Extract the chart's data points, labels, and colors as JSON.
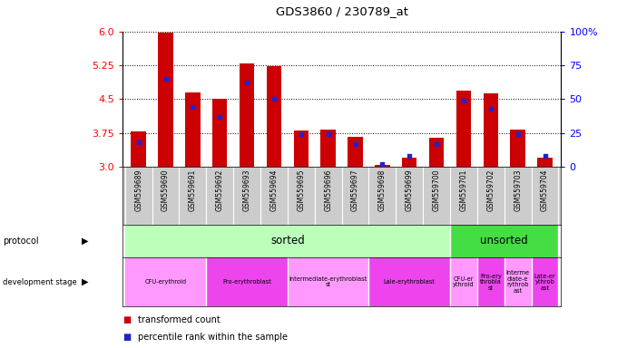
{
  "title": "GDS3860 / 230789_at",
  "samples": [
    "GSM559689",
    "GSM559690",
    "GSM559691",
    "GSM559692",
    "GSM559693",
    "GSM559694",
    "GSM559695",
    "GSM559696",
    "GSM559697",
    "GSM559698",
    "GSM559699",
    "GSM559700",
    "GSM559701",
    "GSM559702",
    "GSM559703",
    "GSM559704"
  ],
  "transformed_count": [
    3.79,
    5.98,
    4.65,
    4.5,
    5.3,
    5.22,
    3.8,
    3.82,
    3.66,
    3.05,
    3.2,
    3.64,
    4.68,
    4.62,
    3.82,
    3.2
  ],
  "percentile_rank": [
    18,
    65,
    44,
    37,
    62,
    50,
    24,
    24,
    17,
    2,
    8,
    17,
    49,
    43,
    24,
    8
  ],
  "y_min": 3.0,
  "y_max": 6.0,
  "yticks_left": [
    3.0,
    3.75,
    4.5,
    5.25,
    6.0
  ],
  "yticks_right": [
    0,
    25,
    50,
    75,
    100
  ],
  "bar_color": "#CC0000",
  "dot_color": "#2222CC",
  "protocol_row": [
    {
      "label": "sorted",
      "start": 0,
      "end": 12,
      "color": "#BBFFBB"
    },
    {
      "label": "unsorted",
      "start": 12,
      "end": 16,
      "color": "#44DD44"
    }
  ],
  "devstage_row": [
    {
      "label": "CFU-erythroid",
      "start": 0,
      "end": 3,
      "color": "#FF99FF"
    },
    {
      "label": "Pro-erythroblast",
      "start": 3,
      "end": 6,
      "color": "#EE44EE"
    },
    {
      "label": "Intermediate-erythroblast\nst",
      "start": 6,
      "end": 9,
      "color": "#FF99FF"
    },
    {
      "label": "Lale-erythroblast",
      "start": 9,
      "end": 12,
      "color": "#EE44EE"
    },
    {
      "label": "CFU-er\nythroid",
      "start": 12,
      "end": 13,
      "color": "#FF99FF"
    },
    {
      "label": "Pro-ery\nthrobla\nst",
      "start": 13,
      "end": 14,
      "color": "#EE44EE"
    },
    {
      "label": "Interme\ndiate-e\nrythrob\nast",
      "start": 14,
      "end": 15,
      "color": "#FF99FF"
    },
    {
      "label": "Late-er\nythrob\nast",
      "start": 15,
      "end": 16,
      "color": "#EE44EE"
    }
  ],
  "legend_red_label": "transformed count",
  "legend_blue_label": "percentile rank within the sample",
  "protocol_label": "protocol",
  "devstage_label": "development stage"
}
